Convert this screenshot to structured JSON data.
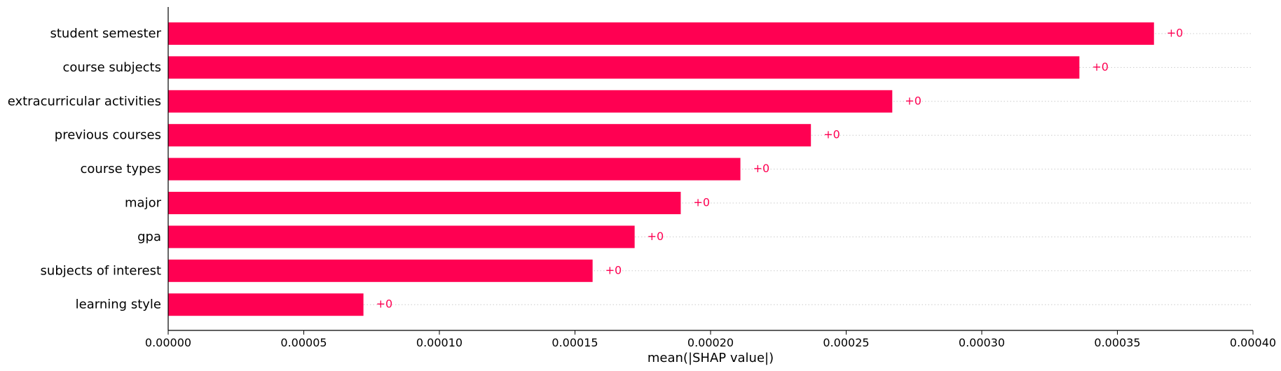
{
  "chart_data": {
    "type": "bar",
    "orientation": "horizontal",
    "categories": [
      "student semester",
      "course subjects",
      "extracurricular activities",
      "previous courses",
      "course types",
      "major",
      "gpa",
      "subjects of interest",
      "learning style"
    ],
    "values": [
      0.0003635,
      0.000336,
      0.000267,
      0.000237,
      0.000211,
      0.000189,
      0.000172,
      0.0001565,
      7.2e-05
    ],
    "value_labels": [
      "+0",
      "+0",
      "+0",
      "+0",
      "+0",
      "+0",
      "+0",
      "+0",
      "+0"
    ],
    "title": "",
    "xlabel": "mean(|SHAP value|)",
    "ylabel": "",
    "xlim": [
      0,
      0.0004
    ],
    "x_ticks": [
      0,
      5e-05,
      0.0001,
      0.00015,
      0.0002,
      0.00025,
      0.0003,
      0.00035,
      0.0004
    ],
    "x_tick_labels": [
      "0.00000",
      "0.00005",
      "0.00010",
      "0.00015",
      "0.00020",
      "0.00025",
      "0.00030",
      "0.00035",
      "0.00040"
    ],
    "grid": "horizontal dotted lines per row",
    "bar_color": "#ff0052",
    "label_color": "#ff0052"
  }
}
